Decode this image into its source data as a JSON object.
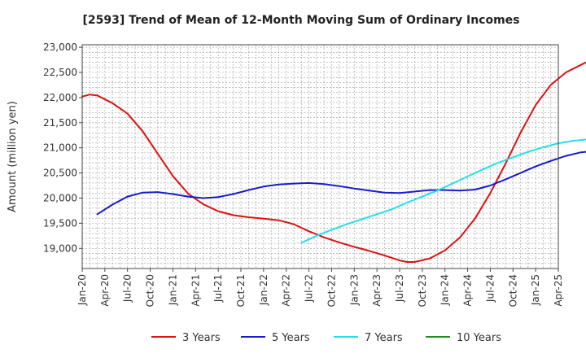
{
  "chart_data": {
    "type": "line",
    "title": "[2593]  Trend of Mean of 12-Month Moving Sum of Ordinary Incomes",
    "xlabel": "",
    "ylabel": "Amount (million yen)",
    "ylim": [
      18600,
      23050
    ],
    "y_ticks": [
      19000,
      19500,
      20000,
      20500,
      21000,
      21500,
      22000,
      22500,
      23000
    ],
    "y_tick_labels": [
      "19,000",
      "19,500",
      "20,000",
      "20,500",
      "21,000",
      "21,500",
      "22,000",
      "22,500",
      "23,000"
    ],
    "x_ticks": [
      "Jan-20",
      "Apr-20",
      "Jul-20",
      "Oct-20",
      "Jan-21",
      "Apr-21",
      "Jul-21",
      "Oct-21",
      "Jan-22",
      "Apr-22",
      "Jul-22",
      "Oct-22",
      "Jan-23",
      "Apr-23",
      "Jul-23",
      "Oct-23",
      "Jan-24",
      "Apr-24",
      "Jul-24",
      "Oct-24",
      "Jan-25",
      "Apr-25"
    ],
    "grid": true,
    "legend_position": "bottom",
    "series": [
      {
        "name": "3 Years",
        "color": "#dd1111",
        "points": [
          [
            0,
            22020
          ],
          [
            1,
            22060
          ],
          [
            2,
            22040
          ],
          [
            4,
            21890
          ],
          [
            6,
            21680
          ],
          [
            8,
            21330
          ],
          [
            10,
            20880
          ],
          [
            12,
            20440
          ],
          [
            14,
            20090
          ],
          [
            16,
            19880
          ],
          [
            18,
            19740
          ],
          [
            20,
            19660
          ],
          [
            22,
            19620
          ],
          [
            24,
            19590
          ],
          [
            26,
            19560
          ],
          [
            28,
            19480
          ],
          [
            30,
            19340
          ],
          [
            32,
            19220
          ],
          [
            34,
            19120
          ],
          [
            36,
            19030
          ],
          [
            38,
            18950
          ],
          [
            40,
            18860
          ],
          [
            42,
            18760
          ],
          [
            43,
            18730
          ],
          [
            44,
            18730
          ],
          [
            46,
            18800
          ],
          [
            48,
            18960
          ],
          [
            50,
            19220
          ],
          [
            52,
            19600
          ],
          [
            54,
            20100
          ],
          [
            56,
            20680
          ],
          [
            58,
            21300
          ],
          [
            60,
            21850
          ],
          [
            62,
            22250
          ],
          [
            64,
            22500
          ],
          [
            66,
            22650
          ],
          [
            68,
            22800
          ],
          [
            70,
            22900
          ],
          [
            72,
            22950
          ],
          [
            73,
            22960
          ]
        ]
      },
      {
        "name": "5 Years",
        "color": "#1a1acc",
        "points": [
          [
            2,
            19680
          ],
          [
            4,
            19870
          ],
          [
            6,
            20030
          ],
          [
            8,
            20110
          ],
          [
            10,
            20120
          ],
          [
            12,
            20080
          ],
          [
            14,
            20030
          ],
          [
            16,
            20000
          ],
          [
            18,
            20020
          ],
          [
            20,
            20080
          ],
          [
            22,
            20160
          ],
          [
            24,
            20230
          ],
          [
            26,
            20270
          ],
          [
            28,
            20290
          ],
          [
            30,
            20300
          ],
          [
            32,
            20280
          ],
          [
            34,
            20240
          ],
          [
            36,
            20190
          ],
          [
            38,
            20150
          ],
          [
            40,
            20110
          ],
          [
            42,
            20100
          ],
          [
            44,
            20130
          ],
          [
            46,
            20160
          ],
          [
            48,
            20160
          ],
          [
            50,
            20150
          ],
          [
            52,
            20170
          ],
          [
            54,
            20250
          ],
          [
            56,
            20370
          ],
          [
            58,
            20500
          ],
          [
            60,
            20630
          ],
          [
            62,
            20740
          ],
          [
            64,
            20840
          ],
          [
            66,
            20910
          ],
          [
            68,
            20940
          ],
          [
            70,
            20950
          ],
          [
            72,
            20950
          ],
          [
            74,
            20930
          ],
          [
            76,
            20870
          ]
        ]
      },
      {
        "name": "7 Years",
        "color": "#22e0e8",
        "points": [
          [
            29,
            19110
          ],
          [
            31,
            19250
          ],
          [
            33,
            19370
          ],
          [
            35,
            19480
          ],
          [
            37,
            19580
          ],
          [
            39,
            19680
          ],
          [
            41,
            19780
          ],
          [
            43,
            19910
          ],
          [
            45,
            20030
          ],
          [
            47,
            20150
          ],
          [
            49,
            20290
          ],
          [
            51,
            20430
          ],
          [
            53,
            20570
          ],
          [
            55,
            20700
          ],
          [
            57,
            20810
          ],
          [
            59,
            20920
          ],
          [
            61,
            21010
          ],
          [
            63,
            21090
          ],
          [
            65,
            21140
          ],
          [
            67,
            21170
          ],
          [
            69,
            21190
          ],
          [
            71,
            21210
          ],
          [
            73,
            21230
          ],
          [
            76,
            21260
          ]
        ]
      },
      {
        "name": "10 Years",
        "color": "#228b22",
        "points": []
      }
    ]
  }
}
